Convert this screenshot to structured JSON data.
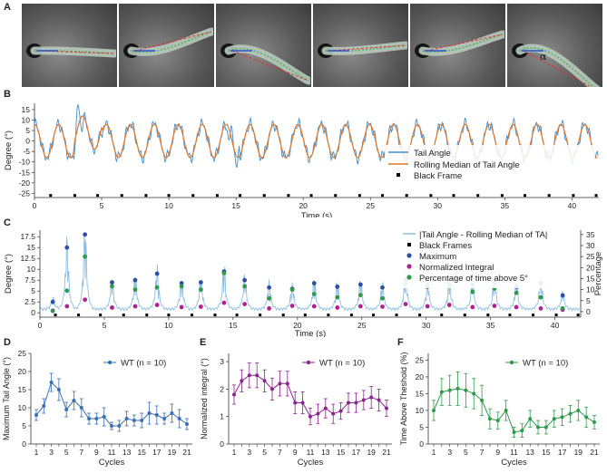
{
  "panels": {
    "A": "A",
    "B": "B",
    "C": "C",
    "D": "D",
    "E": "E",
    "F": "F"
  },
  "strip": {
    "frame_count": 6,
    "alpha_label": "α"
  },
  "chart_b": {
    "type": "line",
    "ylabel": "Degree (°)",
    "xlabel": "Time (s)",
    "xlim": [
      0,
      42
    ],
    "ylim": [
      -27,
      18
    ],
    "xticks": [
      0,
      5,
      10,
      15,
      20,
      25,
      30,
      35,
      40
    ],
    "yticks": [
      -25,
      -20,
      -15,
      -10,
      -5,
      0,
      5,
      10,
      15
    ],
    "legend": [
      "Tail Angle",
      "Rolling Median of Tail Angle",
      "Black Frame"
    ],
    "colors": {
      "tail": "#3d8fd0",
      "median": "#e0782a",
      "black": "#000000"
    },
    "black_frames": [
      1.2,
      3.0,
      4.7,
      6.5,
      8.3,
      10.0,
      11.8,
      13.6,
      15.3,
      17.1,
      18.9,
      20.6,
      22.4,
      24.2,
      25.9,
      27.7,
      29.5,
      31.2,
      33.0,
      34.8,
      36.5,
      38.3,
      40.1,
      41.8
    ],
    "cycle_peaks": [
      1.8,
      3.5,
      4.9,
      7.3,
      9.0,
      10.6,
      12.4,
      14.3,
      15.8,
      17.6,
      19.5,
      21.0,
      22.9,
      24.8,
      26.4,
      28.2,
      30.0,
      31.6,
      33.4,
      35.2,
      36.9,
      38.8,
      40.6
    ]
  },
  "chart_c": {
    "type": "line",
    "ylabel": "Degree (°)",
    "ylabel2": "Percentage",
    "xlabel": "Time (s)",
    "xlim": [
      0,
      42
    ],
    "ylim": [
      -1,
      19
    ],
    "y2lim": [
      -2.5,
      37
    ],
    "xticks": [
      0,
      5,
      10,
      15,
      20,
      25,
      30,
      35,
      40
    ],
    "yticks": [
      0,
      2.5,
      5,
      7.5,
      10,
      12.5,
      15,
      17.5
    ],
    "y2ticks": [
      0,
      5,
      10,
      15,
      20,
      25,
      30,
      35
    ],
    "legend": [
      "|Tail Angle - Rolling Median of TA|",
      "Black Frames",
      "Maximum",
      "Normalized Integral",
      "Percentage of time above 5°"
    ],
    "colors": {
      "trace": "#8fbde0",
      "black": "#000000",
      "max": "#2e4fa8",
      "integral": "#b0208f",
      "pct": "#2e9a4a"
    },
    "black_frames": [
      1.2,
      3.0,
      4.7,
      6.5,
      8.3,
      10.0,
      11.8,
      13.6,
      15.3,
      17.1,
      18.9,
      20.6,
      22.4,
      24.2,
      25.9,
      27.7,
      29.5,
      31.2,
      33.0,
      34.8,
      36.5,
      38.3,
      40.1,
      41.8
    ],
    "markers": [
      {
        "x": 1.0,
        "max": 2.5,
        "integral": 0.5,
        "pct": 0.3
      },
      {
        "x": 2.1,
        "max": 15.0,
        "integral": 1.5,
        "pct": 9.5
      },
      {
        "x": 3.5,
        "max": 18.0,
        "integral": 3.0,
        "pct": 25.0
      },
      {
        "x": 5.6,
        "max": 7.0,
        "integral": 1.2,
        "pct": 11.5
      },
      {
        "x": 7.4,
        "max": 7.5,
        "integral": 1.5,
        "pct": 10.0
      },
      {
        "x": 9.1,
        "max": 9.0,
        "integral": 1.8,
        "pct": 11.0
      },
      {
        "x": 11.0,
        "max": 6.8,
        "integral": 1.3,
        "pct": 11.5
      },
      {
        "x": 12.5,
        "max": 7.0,
        "integral": 1.4,
        "pct": 10.0
      },
      {
        "x": 14.3,
        "max": 9.5,
        "integral": 2.3,
        "pct": 17.5
      },
      {
        "x": 15.9,
        "max": 7.5,
        "integral": 2.0,
        "pct": 11.5
      },
      {
        "x": 17.8,
        "max": 5.8,
        "integral": 1.0,
        "pct": 6.0
      },
      {
        "x": 19.6,
        "max": 5.5,
        "integral": 1.6,
        "pct": 10.0
      },
      {
        "x": 21.3,
        "max": 6.8,
        "integral": 1.5,
        "pct": 8.0
      },
      {
        "x": 23.1,
        "max": 6.0,
        "integral": 1.2,
        "pct": 6.5
      },
      {
        "x": 24.9,
        "max": 6.5,
        "integral": 1.5,
        "pct": 7.5
      },
      {
        "x": 26.6,
        "max": 5.8,
        "integral": 1.4,
        "pct": 6.0
      },
      {
        "x": 28.4,
        "max": 7.5,
        "integral": 2.0,
        "pct": 12.5
      },
      {
        "x": 30.1,
        "max": 6.0,
        "integral": 1.5,
        "pct": 12.0
      },
      {
        "x": 31.8,
        "max": 6.3,
        "integral": 1.8,
        "pct": 12.5
      },
      {
        "x": 33.6,
        "max": 6.5,
        "integral": 1.3,
        "pct": 9.0
      },
      {
        "x": 35.3,
        "max": 7.0,
        "integral": 1.6,
        "pct": 10.5
      },
      {
        "x": 37.0,
        "max": 6.0,
        "integral": 1.3,
        "pct": 8.5
      },
      {
        "x": 38.9,
        "max": 6.8,
        "integral": 1.0,
        "pct": 6.5
      },
      {
        "x": 40.6,
        "max": 4.0,
        "integral": 0.7,
        "pct": 1.5
      }
    ]
  },
  "cycle_charts": [
    {
      "id": "D",
      "type": "line",
      "ylabel": "Maximum Tail Angle (°)",
      "xlabel": "Cycles",
      "legend": "WT (n = 10)",
      "color": "#3b6fb6",
      "ylim": [
        0,
        25
      ],
      "yticks": [
        0,
        5,
        10,
        15,
        20,
        25
      ],
      "ytick_labels": [
        "0",
        "5",
        "10",
        "15",
        "20",
        "25"
      ],
      "x": [
        1,
        2,
        3,
        4,
        5,
        6,
        7,
        8,
        9,
        10,
        11,
        12,
        13,
        14,
        15,
        16,
        17,
        18,
        19,
        20,
        21
      ],
      "xtick_labels": [
        "1",
        "3",
        "5",
        "7",
        "9",
        "11",
        "13",
        "15",
        "17",
        "19",
        "21"
      ],
      "values": [
        8,
        10.5,
        17,
        15,
        9.5,
        12,
        10,
        7,
        7,
        7.5,
        5,
        5,
        7,
        6.5,
        6.5,
        8.5,
        8,
        7,
        8.5,
        7,
        5.5
      ],
      "errors": [
        1.5,
        2,
        2.5,
        3,
        2,
        2.5,
        2.5,
        1.5,
        1.5,
        2.5,
        1,
        1.5,
        2,
        1.5,
        2,
        3,
        2.5,
        1.5,
        2.5,
        2.5,
        1.5
      ]
    },
    {
      "id": "E",
      "type": "line",
      "ylabel": "Normalized integral (°)",
      "xlabel": "Cycles",
      "legend": "WT (n = 10)",
      "color": "#8b2490",
      "ylim": [
        0,
        3.3
      ],
      "yticks": [
        0,
        1,
        2,
        3
      ],
      "ytick_labels": [
        "0",
        "1",
        "2",
        "3"
      ],
      "x": [
        1,
        2,
        3,
        4,
        5,
        6,
        7,
        8,
        9,
        10,
        11,
        12,
        13,
        14,
        15,
        16,
        17,
        18,
        19,
        20,
        21
      ],
      "xtick_labels": [
        "1",
        "3",
        "5",
        "7",
        "9",
        "11",
        "13",
        "15",
        "17",
        "19",
        "21"
      ],
      "values": [
        1.8,
        2.3,
        2.5,
        2.5,
        2.3,
        2.0,
        2.2,
        2.2,
        1.5,
        1.5,
        1.0,
        1.1,
        1.3,
        1.1,
        1.2,
        1.5,
        1.5,
        1.6,
        1.7,
        1.6,
        1.3
      ],
      "errors": [
        0.35,
        0.4,
        0.45,
        0.45,
        0.4,
        0.4,
        0.45,
        0.45,
        0.4,
        0.4,
        0.3,
        0.35,
        0.35,
        0.35,
        0.3,
        0.35,
        0.35,
        0.35,
        0.4,
        0.4,
        0.3
      ]
    },
    {
      "id": "F",
      "type": "line",
      "ylabel": "Time Above Theshold (%)",
      "xlabel": "Cycles",
      "legend": "WT (n = 10)",
      "color": "#2e9a4a",
      "ylim": [
        0,
        27
      ],
      "yticks": [
        0,
        5,
        10,
        15,
        20,
        25
      ],
      "ytick_labels": [
        "0",
        "5",
        "10",
        "15",
        "20",
        "25"
      ],
      "x": [
        1,
        2,
        3,
        4,
        5,
        6,
        7,
        8,
        9,
        10,
        11,
        12,
        13,
        14,
        15,
        16,
        17,
        18,
        19,
        20,
        21
      ],
      "xtick_labels": [
        "1",
        "3",
        "5",
        "7",
        "9",
        "11",
        "13",
        "15",
        "17",
        "19",
        "21"
      ],
      "values": [
        10,
        15.5,
        16,
        16.5,
        16,
        15,
        13,
        7.5,
        7,
        10,
        3.5,
        4,
        7.5,
        5,
        5,
        7.5,
        8,
        9,
        10,
        8,
        6.5
      ],
      "errors": [
        3,
        4,
        4.5,
        5,
        5,
        4.5,
        4.5,
        3,
        2.5,
        3,
        1.5,
        2,
        2.5,
        2,
        2,
        2.5,
        2.5,
        2.5,
        3,
        3,
        2
      ]
    }
  ]
}
